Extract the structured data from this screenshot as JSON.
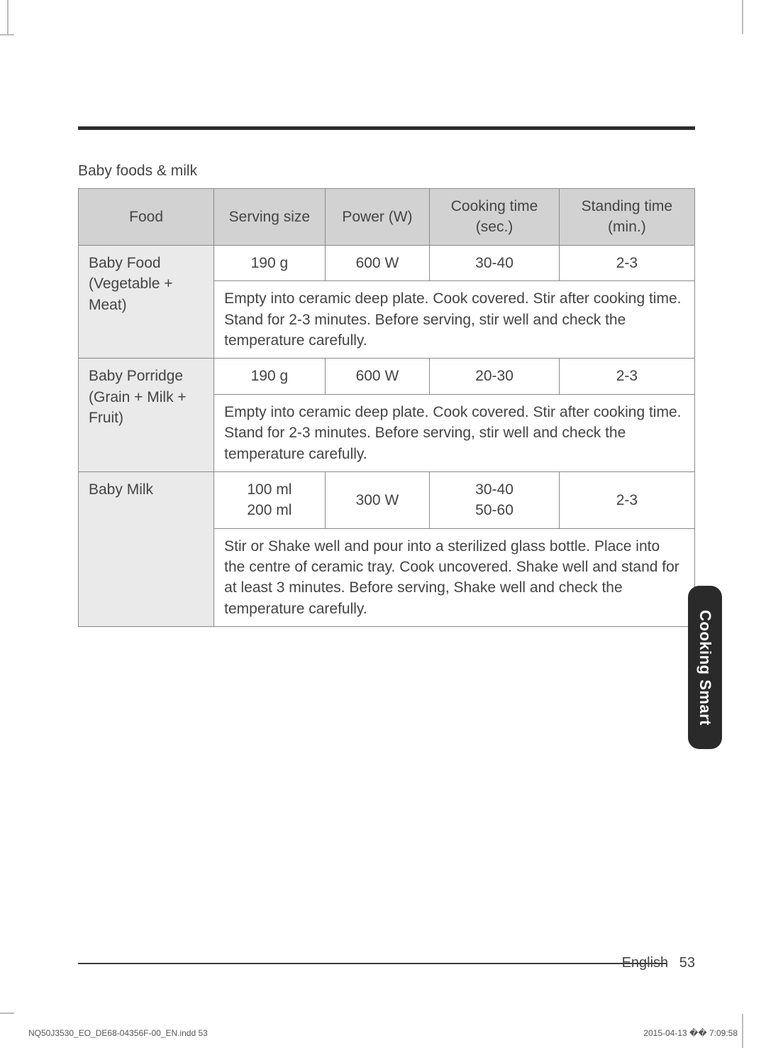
{
  "page": {
    "section_title": "Baby foods & milk",
    "side_tab": "Cooking Smart",
    "footer_lang": "English",
    "footer_page": "53",
    "print_meta_left": "NQ50J3530_EO_DE68-04356F-00_EN.indd   53",
    "print_meta_right": "2015-04-13   �� 7:09:58"
  },
  "table": {
    "colors": {
      "header_bg": "#d2d2d2",
      "label_bg": "#eaeaea",
      "border": "#8a8a8a",
      "text": "#444444"
    },
    "headers": {
      "food": "Food",
      "serving": "Serving size",
      "power": "Power (W)",
      "cook": "Cooking time (sec.)",
      "stand": "Standing time (min.)"
    },
    "rows": {
      "baby_food": {
        "label_line1": "Baby Food",
        "label_line2": "(Vegetable + Meat)",
        "serving": "190 g",
        "power": "600 W",
        "cook": "30-40",
        "stand": "2-3",
        "desc": "Empty into ceramic deep plate. Cook covered. Stir after cooking time. Stand for 2-3 minutes. Before serving, stir well and check the temperature carefully."
      },
      "baby_porridge": {
        "label_line1": "Baby Porridge",
        "label_line2": "(Grain + Milk + Fruit)",
        "serving": "190 g",
        "power": "600 W",
        "cook": "20-30",
        "stand": "2-3",
        "desc": "Empty into ceramic deep plate. Cook covered. Stir after cooking time. Stand for 2-3 minutes. Before serving, stir well and check the temperature carefully."
      },
      "baby_milk": {
        "label": "Baby Milk",
        "serving_line1": "100 ml",
        "serving_line2": "200 ml",
        "power": "300 W",
        "cook_line1": "30-40",
        "cook_line2": "50-60",
        "stand": "2-3",
        "desc": "Stir or Shake well and pour into a sterilized glass bottle. Place into the centre of ceramic tray. Cook uncovered. Shake well and stand for at least 3 minutes. Before serving, Shake well and check the temperature carefully."
      }
    }
  }
}
